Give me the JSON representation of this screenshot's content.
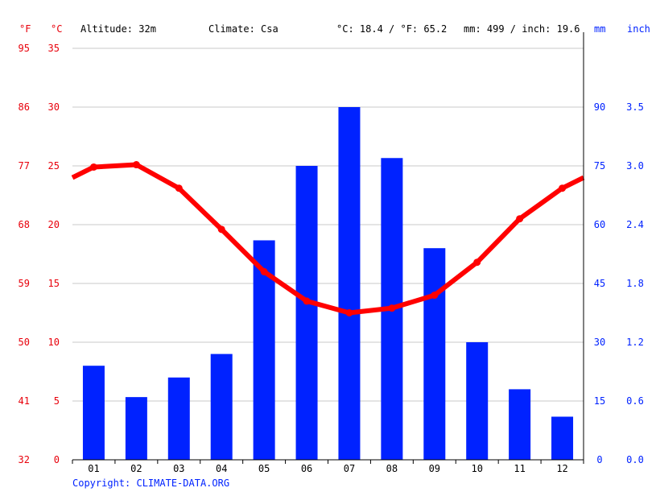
{
  "header": {
    "unit_f": "°F",
    "unit_c": "°C",
    "altitude": "Altitude: 32m",
    "climate": "Climate: Csa",
    "temp_avg": "°C: 18.4 / °F: 65.2",
    "precip_total": "mm: 499 / inch: 19.6",
    "unit_mm": "mm",
    "unit_inch": "inch"
  },
  "copyright": "Copyright: CLIMATE-DATA.ORG",
  "colors": {
    "temperature": "#ff0000",
    "precipitation": "#0022ff",
    "grid": "#c8c8c8",
    "axis_left": "#e8000b",
    "axis_right": "#0022ff"
  },
  "chart_data": {
    "type": "bar",
    "categories": [
      "01",
      "02",
      "03",
      "04",
      "05",
      "06",
      "07",
      "08",
      "09",
      "10",
      "11",
      "12"
    ],
    "series": [
      {
        "type": "bar",
        "axis": "right",
        "values": [
          24,
          16,
          21,
          27,
          56,
          75,
          90,
          77,
          54,
          30,
          18,
          11
        ]
      },
      {
        "type": "line",
        "axis": "left",
        "values": [
          24.9,
          25.1,
          23.1,
          19.6,
          16.0,
          13.5,
          12.5,
          12.9,
          14.0,
          16.8,
          20.5,
          23.1
        ]
      }
    ],
    "left_axis": {
      "celsius_ticks": [
        "0",
        "5",
        "10",
        "15",
        "20",
        "25",
        "30",
        "35"
      ],
      "fahrenheit_ticks": [
        "32",
        "41",
        "50",
        "59",
        "68",
        "77",
        "86",
        "95"
      ],
      "ylim": [
        0,
        35
      ]
    },
    "right_axis": {
      "mm_ticks": [
        "0",
        "15",
        "30",
        "45",
        "60",
        "75",
        "90"
      ],
      "inch_ticks": [
        "0.0",
        "0.6",
        "1.2",
        "1.8",
        "2.4",
        "3.0",
        "3.5"
      ],
      "ylim": [
        0,
        105
      ]
    },
    "grid": true
  }
}
